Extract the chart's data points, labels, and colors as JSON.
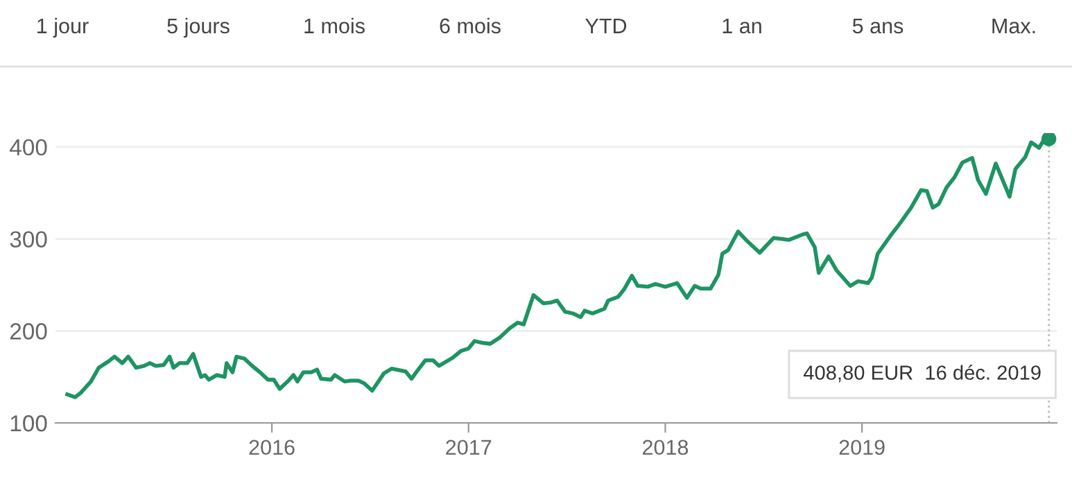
{
  "chart_data": {
    "type": "line",
    "annotations": [
      "1 jour",
      "5 jours",
      "1 mois",
      "6 mois",
      "YTD",
      "1 an",
      "5 ans",
      "Max.",
      "408,80 EUR  16 déc. 2019"
    ],
    "xlim": [
      2014.9,
      2019.99
    ],
    "xticks": [
      2016,
      2017,
      2018,
      2019
    ],
    "ylim": [
      100,
      415
    ],
    "yticks": [
      100,
      200,
      300,
      400
    ],
    "grid": "y",
    "marker": "none",
    "line_style": "solid",
    "ref_lines": [
      {
        "axis": "x",
        "value": 2019.95,
        "color": "#bdbdbd",
        "line_style": "dotted"
      }
    ],
    "series": [
      {
        "color": "#1e9463",
        "x": [
          2014.96,
          2015.0,
          2015.03,
          2015.08,
          2015.12,
          2015.17,
          2015.2,
          2015.24,
          2015.27,
          2015.31,
          2015.35,
          2015.38,
          2015.41,
          2015.45,
          2015.48,
          2015.5,
          2015.53,
          2015.57,
          2015.6,
          2015.64,
          2015.66,
          2015.68,
          2015.72,
          2015.76,
          2015.77,
          2015.8,
          2015.82,
          2015.86,
          2015.9,
          2015.94,
          2015.98,
          2016.01,
          2016.04,
          2016.08,
          2016.11,
          2016.13,
          2016.16,
          2016.2,
          2016.23,
          2016.25,
          2016.3,
          2016.32,
          2016.37,
          2016.4,
          2016.44,
          2016.47,
          2016.51,
          2016.57,
          2016.61,
          2016.68,
          2016.71,
          2016.73,
          2016.78,
          2016.82,
          2016.85,
          2016.92,
          2016.96,
          2017.0,
          2017.03,
          2017.07,
          2017.11,
          2017.16,
          2017.21,
          2017.25,
          2017.28,
          2017.33,
          2017.38,
          2017.42,
          2017.45,
          2017.49,
          2017.53,
          2017.57,
          2017.59,
          2017.63,
          2017.69,
          2017.71,
          2017.76,
          2017.79,
          2017.83,
          2017.86,
          2017.91,
          2017.95,
          2018.0,
          2018.06,
          2018.11,
          2018.15,
          2018.18,
          2018.23,
          2018.27,
          2018.29,
          2018.32,
          2018.37,
          2018.41,
          2018.48,
          2018.55,
          2018.63,
          2018.7,
          2018.72,
          2018.76,
          2018.78,
          2018.83,
          2018.87,
          2018.94,
          2018.98,
          2019.03,
          2019.05,
          2019.08,
          2019.15,
          2019.19,
          2019.25,
          2019.3,
          2019.33,
          2019.36,
          2019.39,
          2019.43,
          2019.47,
          2019.51,
          2019.56,
          2019.59,
          2019.63,
          2019.68,
          2019.75,
          2019.78,
          2019.83,
          2019.86,
          2019.9,
          2019.92,
          2019.95
        ],
        "values": [
          131,
          128,
          133,
          145,
          160,
          167,
          172,
          165,
          172,
          160,
          162,
          165,
          162,
          163,
          172,
          160,
          165,
          165,
          175,
          150,
          152,
          147,
          152,
          150,
          165,
          155,
          172,
          170,
          162,
          155,
          147,
          147,
          137,
          145,
          152,
          145,
          155,
          155,
          158,
          148,
          147,
          152,
          145,
          146,
          146,
          143,
          135,
          154,
          159,
          156,
          148,
          154,
          168,
          168,
          162,
          171,
          178,
          181,
          189,
          187,
          186,
          193,
          203,
          209,
          207,
          239,
          230,
          231,
          233,
          221,
          219,
          215,
          222,
          219,
          224,
          233,
          237,
          245,
          260,
          249,
          248,
          251,
          248,
          252,
          236,
          249,
          246,
          246,
          261,
          284,
          288,
          308,
          299,
          285,
          301,
          299,
          305,
          306,
          291,
          263,
          281,
          266,
          249,
          254,
          252,
          258,
          284,
          305,
          316,
          334,
          353,
          352,
          334,
          338,
          356,
          367,
          383,
          388,
          364,
          349,
          382,
          346,
          376,
          389,
          405,
          399,
          406,
          408.8
        ]
      },
      {
        "type": "scatter",
        "color": "#1e9463",
        "x": [
          2019.95
        ],
        "values": [
          408.8
        ],
        "marker": "circle"
      }
    ]
  }
}
